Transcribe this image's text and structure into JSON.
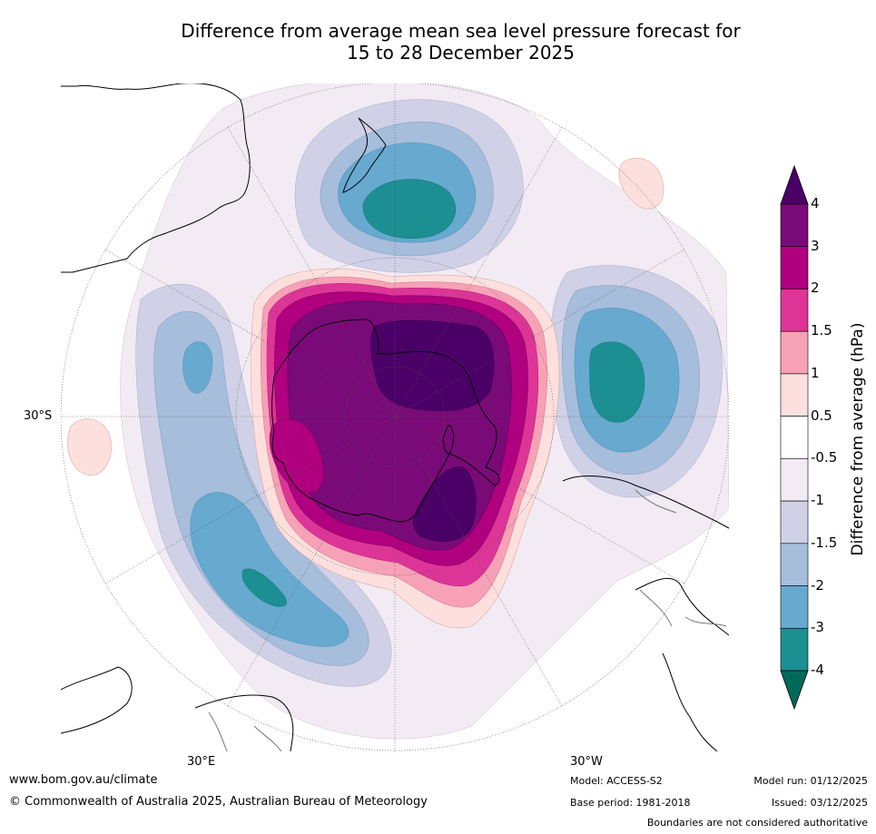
{
  "title": {
    "line1": "Difference from average mean sea level pressure forecast for",
    "line2": "15 to 28 December 2025"
  },
  "map": {
    "lat_label": "30°S",
    "lon_label_e": "30°E",
    "lon_label_w": "30°W"
  },
  "colorbar": {
    "title": "Difference from average (hPa)",
    "levels": [
      "4",
      "3",
      "2",
      "1.5",
      "1",
      "0.5",
      "-0.5",
      "-1",
      "-1.5",
      "-2",
      "-3",
      "-4"
    ],
    "colors": [
      "#4b0068",
      "#7a0a78",
      "#b00080",
      "#dd3597",
      "#f7a1b6",
      "#fde0dd",
      "#ffffff",
      "#f3ebf3",
      "#d0d1e6",
      "#a6bddb",
      "#67a9cf",
      "#1c8f92",
      "#006a5a"
    ]
  },
  "footer": {
    "url": "www.bom.gov.au/climate",
    "copyright": "© Commonwealth of Australia 2025, Australian Bureau of Meteorology",
    "model": "Model: ACCESS-S2",
    "base_period": "Base period: 1981-2018",
    "model_run": "Model run: 01/12/2025",
    "issued": "Issued: 03/12/2025",
    "disclaimer": "Boundaries are not considered authoritative"
  }
}
